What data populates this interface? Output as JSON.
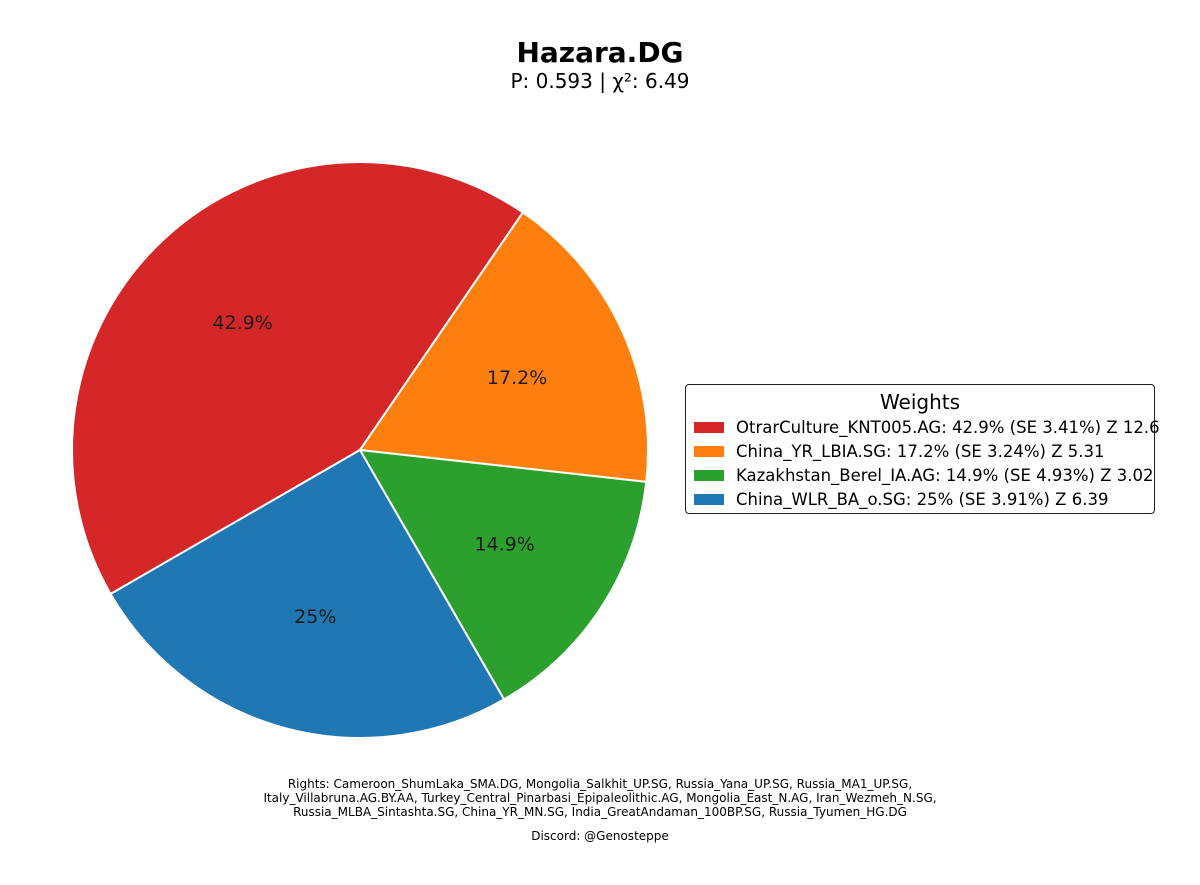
{
  "chart_data": {
    "type": "pie",
    "title": "Hazara.DG",
    "subtitle": "P: 0.593 | χ²: 6.49",
    "legend_title": "Weights",
    "legend_position": "right",
    "slices": [
      {
        "label": "OtrarCulture_KNT005.AG",
        "value": 42.9,
        "pct_label": "42.9%",
        "legend": "OtrarCulture_KNT005.AG: 42.9% (SE 3.41%) Z 12.6",
        "color": "#d62728"
      },
      {
        "label": "China_YR_LBIA.SG",
        "value": 17.2,
        "pct_label": "17.2%",
        "legend": "China_YR_LBIA.SG: 17.2% (SE 3.24%) Z 5.31",
        "color": "#ff7f0e"
      },
      {
        "label": "Kazakhstan_Berel_IA.AG",
        "value": 14.9,
        "pct_label": "14.9%",
        "legend": "Kazakhstan_Berel_IA.AG: 14.9% (SE 4.93%) Z 3.02",
        "color": "#2ca02c"
      },
      {
        "label": "China_WLR_BA_o.SG",
        "value": 25.0,
        "pct_label": "25%",
        "legend": "China_WLR_BA_o.SG: 25% (SE 3.91%) Z 6.39",
        "color": "#1f77b4"
      }
    ]
  },
  "footer": {
    "rights_line1": "Rights: Cameroon_ShumLaka_SMA.DG, Mongolia_Salkhit_UP.SG, Russia_Yana_UP.SG, Russia_MA1_UP.SG,",
    "rights_line2": "Italy_Villabruna.AG.BY.AA, Turkey_Central_Pinarbasi_Epipaleolithic.AG, Mongolia_East_N.AG, Iran_Wezmeh_N.SG,",
    "rights_line3": "Russia_MLBA_Sintashta.SG, China_YR_MN.SG, India_GreatAndaman_100BP.SG, Russia_Tyumen_HG.DG",
    "discord": "Discord: @Genosteppe"
  }
}
